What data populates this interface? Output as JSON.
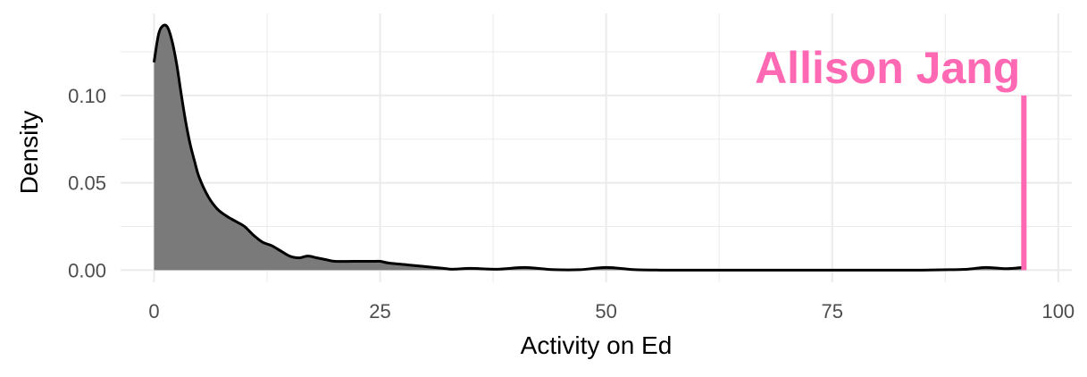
{
  "chart_data": {
    "type": "area",
    "xlabel": "Activity on Ed",
    "ylabel": "Density",
    "xlim": [
      -3.7,
      101.5
    ],
    "ylim": [
      -0.007,
      0.147
    ],
    "x_ticks": [
      0,
      25,
      50,
      75,
      100
    ],
    "x_tick_labels": [
      "0",
      "25",
      "50",
      "75",
      "100"
    ],
    "y_ticks": [
      0.0,
      0.05,
      0.1
    ],
    "y_tick_labels": [
      "0.00",
      "0.05",
      "0.10"
    ],
    "grid": true,
    "series": [
      {
        "x": [
          0,
          0.5,
          1,
          1.5,
          2,
          2.5,
          3,
          3.5,
          4,
          4.5,
          5,
          6,
          7,
          8,
          9,
          10,
          11,
          12,
          13,
          14,
          15,
          16,
          17,
          18,
          19,
          20,
          22,
          24,
          25,
          26,
          28,
          30,
          32,
          33,
          35,
          38,
          41,
          44,
          47,
          50,
          53,
          56,
          60,
          65,
          70,
          75,
          80,
          85,
          88,
          90,
          92,
          94,
          95,
          96
        ],
        "y": [
          0.119,
          0.135,
          0.14,
          0.139,
          0.131,
          0.118,
          0.101,
          0.085,
          0.072,
          0.062,
          0.053,
          0.042,
          0.035,
          0.031,
          0.028,
          0.025,
          0.02,
          0.016,
          0.014,
          0.011,
          0.008,
          0.007,
          0.008,
          0.007,
          0.006,
          0.005,
          0.005,
          0.005,
          0.005,
          0.004,
          0.003,
          0.002,
          0.001,
          0.0005,
          0.001,
          0.0005,
          0.0015,
          0.0003,
          0.0002,
          0.0015,
          0.0003,
          0.0,
          0.0,
          0.0,
          0.0,
          0.0,
          0.0,
          0.0,
          0.0002,
          0.0005,
          0.0015,
          0.0008,
          0.001,
          0.0015
        ]
      }
    ],
    "colors": {
      "fill": "#7a7a7a",
      "line": "#000000",
      "highlight": "#ff69b4",
      "grid": "#ebebeb"
    },
    "annotation": {
      "label": "Allison Jang",
      "x": 96.2,
      "y_end": 0.1
    }
  }
}
